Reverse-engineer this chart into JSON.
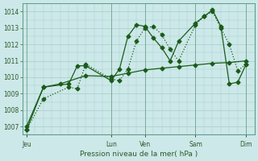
{
  "background_color": "#cce8e8",
  "grid_color": "#a8cccc",
  "line_color": "#1a5c1a",
  "title": "Pression niveau de la mer( hPa )",
  "ylim": [
    1006.5,
    1014.5
  ],
  "yticks": [
    1007,
    1008,
    1009,
    1010,
    1011,
    1012,
    1013,
    1014
  ],
  "x_day_labels": [
    "Jeu",
    "Lun",
    "Ven",
    "Sam",
    "Dim"
  ],
  "x_day_positions": [
    0,
    10,
    14,
    20,
    26
  ],
  "xlim": [
    -0.5,
    27
  ],
  "series1_x": [
    0,
    2,
    5,
    6,
    7,
    10,
    11,
    12,
    13,
    14,
    15,
    16,
    17,
    18,
    20,
    21,
    22,
    23,
    24,
    25,
    26
  ],
  "series1_y": [
    1006.8,
    1008.7,
    1009.4,
    1009.3,
    1010.8,
    1009.9,
    1009.8,
    1010.5,
    1012.2,
    1013.0,
    1013.1,
    1012.6,
    1011.7,
    1011.0,
    1013.2,
    1013.7,
    1014.0,
    1013.0,
    1012.0,
    1010.4,
    1010.8
  ],
  "series2_x": [
    0,
    2,
    5,
    6,
    7,
    10,
    11,
    12,
    13,
    14,
    15,
    16,
    17,
    18,
    20,
    21,
    22,
    23,
    24,
    25,
    26
  ],
  "series2_y": [
    1006.8,
    1009.4,
    1009.6,
    1010.7,
    1010.7,
    1009.8,
    1010.5,
    1012.5,
    1013.2,
    1013.1,
    1012.4,
    1011.8,
    1011.0,
    1012.2,
    1013.3,
    1013.7,
    1014.1,
    1013.1,
    1009.6,
    1009.7,
    1010.8
  ],
  "series3_x": [
    0,
    2,
    4,
    7,
    10,
    12,
    14,
    16,
    18,
    20,
    22,
    24,
    26
  ],
  "series3_y": [
    1007.0,
    1009.4,
    1009.6,
    1010.1,
    1010.05,
    1010.25,
    1010.45,
    1010.55,
    1010.65,
    1010.75,
    1010.85,
    1010.9,
    1011.0
  ],
  "marker_size": 2.5
}
